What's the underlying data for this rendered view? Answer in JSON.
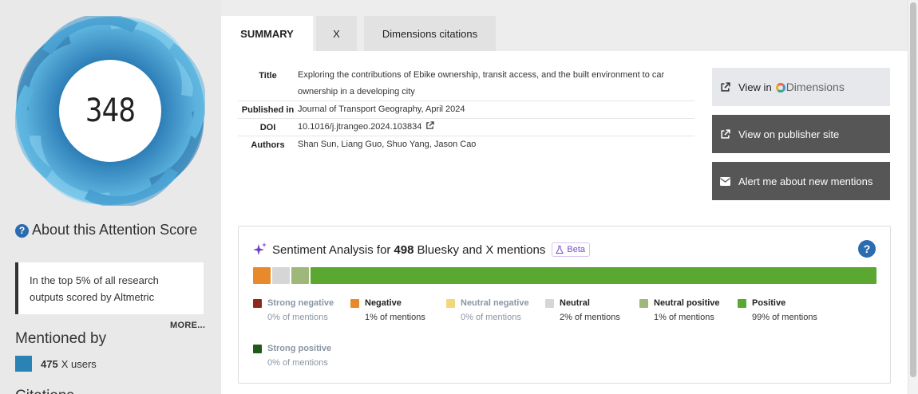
{
  "score": {
    "value": "348",
    "ring_color": "#4fa8d8",
    "ring_dark_color": "#2e86c1"
  },
  "about": {
    "title": "About this Attention Score",
    "help_icon": "question-circle-icon",
    "card_text": "In the top 5% of all research outputs scored by Altmetric",
    "more_label": "MORE..."
  },
  "mentioned_by": {
    "heading": "Mentioned by",
    "x_users_count": "475",
    "x_users_label": "X users",
    "swatch_color": "#2a82b5"
  },
  "citations_heading": "Citations",
  "tabs": [
    {
      "label": "SUMMARY",
      "active": true
    },
    {
      "label": "X",
      "active": false
    },
    {
      "label": "Dimensions citations",
      "active": false
    }
  ],
  "meta": {
    "title_key": "Title",
    "title_val": "Exploring the contributions of Ebike ownership, transit access, and the built environment to car ownership in a developing city",
    "published_key": "Published in",
    "published_val": "Journal of Transport Geography, April 2024",
    "doi_key": "DOI",
    "doi_val": "10.1016/j.jtrangeo.2024.103834",
    "authors_key": "Authors",
    "authors_val": "Shan Sun, Liang Guo, Shuo Yang, Jason Cao"
  },
  "actions": {
    "view_in": "View in",
    "dimensions": "Dimensions",
    "publisher": "View on publisher site",
    "alert": "Alert me about new mentions"
  },
  "sentiment": {
    "prefix": "Sentiment Analysis for",
    "count": "498",
    "suffix": "Bluesky and X mentions",
    "beta": "Beta",
    "help": "?",
    "segments": [
      {
        "name": "negative",
        "fraction": 0.028,
        "color": "#e8892b"
      },
      {
        "name": "neutral",
        "fraction": 0.028,
        "color": "#d6d6d6"
      },
      {
        "name": "neutral-positive",
        "fraction": 0.028,
        "color": "#9fb87a"
      },
      {
        "name": "positive",
        "fraction": 0.916,
        "color": "#5aa832"
      }
    ],
    "legend": [
      {
        "label": "Strong negative",
        "pct": "0% of mentions",
        "color": "#8b2a1a",
        "muted": true
      },
      {
        "label": "Negative",
        "pct": "1% of mentions",
        "color": "#e8892b",
        "muted": false
      },
      {
        "label": "Neutral negative",
        "pct": "0% of mentions",
        "color": "#efd97a",
        "muted": true
      },
      {
        "label": "Neutral",
        "pct": "2% of mentions",
        "color": "#d6d6d6",
        "muted": false
      },
      {
        "label": "Neutral positive",
        "pct": "1% of mentions",
        "color": "#9fb87a",
        "muted": false
      },
      {
        "label": "Positive",
        "pct": "99% of mentions",
        "color": "#5aa832",
        "muted": false
      },
      {
        "label": "Strong positive",
        "pct": "0% of mentions",
        "color": "#1f5a1a",
        "muted": true
      }
    ]
  }
}
